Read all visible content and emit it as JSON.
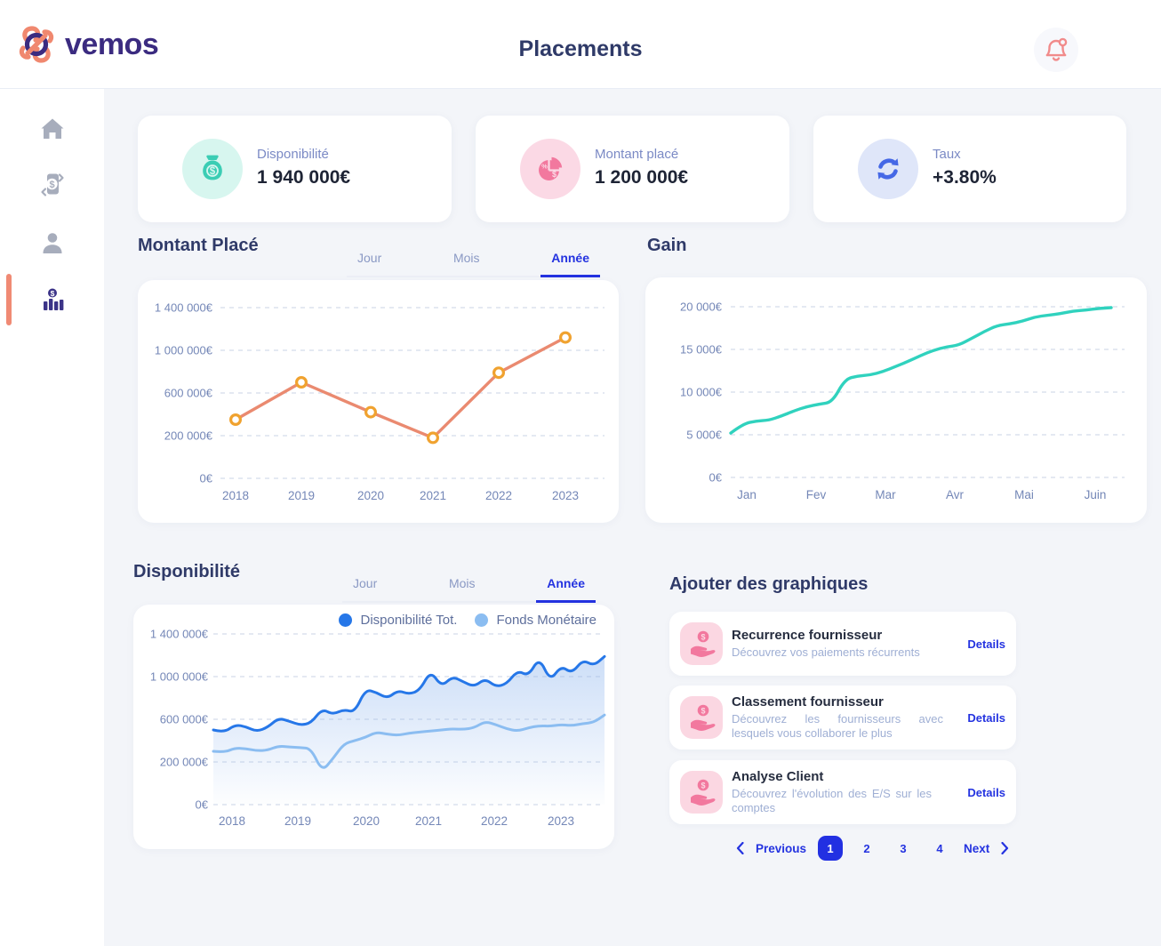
{
  "header": {
    "brand": "vemos",
    "title": "Placements"
  },
  "sidebar": {
    "items": [
      {
        "icon": "home-icon",
        "active": false
      },
      {
        "icon": "transactions-icon",
        "active": false
      },
      {
        "icon": "clients-icon",
        "active": false
      },
      {
        "icon": "placements-icon",
        "active": true
      }
    ]
  },
  "stats": [
    {
      "label": "Disponibilité",
      "value": "1 940 000€",
      "icon": "money-bag-icon",
      "icon_color": "#3BCDB4",
      "icon_bg": "#D7F6EF"
    },
    {
      "label": "Montant placé",
      "value": "1 200 000€",
      "icon": "pie-chart-icon",
      "icon_color": "#F2789E",
      "icon_bg": "#FBD9E5"
    },
    {
      "label": "Taux",
      "value": "+3.80%",
      "icon": "exchange-icon",
      "icon_color": "#4568E6",
      "icon_bg": "#DFE6F9"
    }
  ],
  "tabs": {
    "items": [
      "Jour",
      "Mois",
      "Année"
    ],
    "active": "Année"
  },
  "sections": {
    "montant_place": "Montant Placé",
    "gain": "Gain",
    "disponibilite": "Disponibilité",
    "ajouter": "Ajouter des graphiques"
  },
  "legend": [
    {
      "label": "Disponibilité Tot.",
      "color": "#2677E8"
    },
    {
      "label": "Fonds Monétaire",
      "color": "#8BBDF1"
    }
  ],
  "add_cards": [
    {
      "title": "Recurrence fournisseur",
      "description": "Découvrez vos paiements récurrents",
      "link": "Details",
      "icon": "hand-coin-icon"
    },
    {
      "title": "Classement fournisseur",
      "description": "Découvrez les fournisseurs avec lesquels vous collaborer le plus",
      "link": "Details",
      "icon": "hand-coin-icon"
    },
    {
      "title": "Analyse Client",
      "description": "Découvrez l'évolution des E/S sur les comptes",
      "link": "Details",
      "icon": "hand-coin-icon"
    }
  ],
  "pagination": {
    "previous": "Previous",
    "pages": [
      "1",
      "2",
      "3",
      "4"
    ],
    "active_page": "1",
    "next": "Next"
  },
  "chart_data": [
    {
      "id": "montant_place",
      "type": "line",
      "title": "Montant Placé",
      "categories": [
        "2018",
        "2019",
        "2020",
        "2021",
        "2022",
        "2023"
      ],
      "values": [
        350000,
        700000,
        420000,
        190000,
        790000,
        1120000
      ],
      "y_ticks": {
        "labels": [
          "0€",
          "200 000€",
          "600 000€",
          "1 000 000€",
          "1 400 000€"
        ],
        "values": [
          0,
          200000,
          600000,
          1000000,
          1400000
        ]
      },
      "ylim": [
        0,
        1400000
      ],
      "grid": true,
      "legend_position": "none",
      "line_color": "#EA8A70",
      "marker_color": "#F0A22F"
    },
    {
      "id": "gain",
      "type": "line",
      "title": "Gain",
      "x_labels": [
        "Jan",
        "Fev",
        "Mar",
        "Avr",
        "Mai",
        "Juin"
      ],
      "values": [
        5200,
        6300,
        6600,
        6700,
        7200,
        7800,
        8300,
        8600,
        8800,
        11500,
        11900,
        12000,
        12400,
        13000,
        13600,
        14300,
        14900,
        15300,
        15500,
        16300,
        17100,
        17800,
        18000,
        18300,
        18800,
        19000,
        19200,
        19500,
        19600,
        19800,
        19900
      ],
      "y_ticks": {
        "labels": [
          "0€",
          "5 000€",
          "10 000€",
          "15 000€",
          "20 000€"
        ],
        "values": [
          0,
          5000,
          10000,
          15000,
          20000
        ]
      },
      "ylim": [
        0,
        20000
      ],
      "grid": true,
      "legend_position": "none",
      "line_color": "#30D2BE"
    },
    {
      "id": "disponibilite",
      "type": "area",
      "title": "Disponibilité",
      "x_labels": [
        "2018",
        "2019",
        "2020",
        "2021",
        "2022",
        "2023"
      ],
      "series": [
        {
          "name": "Disponibilité Tot.",
          "color": "#2677E8",
          "values": [
            500000,
            475000,
            550000,
            530000,
            485000,
            525000,
            612000,
            582000,
            545000,
            565000,
            698000,
            645000,
            692000,
            665000,
            880000,
            852000,
            795000,
            872000,
            835000,
            872000,
            1055000,
            905000,
            1002000,
            952000,
            905000,
            982000,
            905000,
            932000,
            1058000,
            1005000,
            1180000,
            958000,
            1102000,
            1030000,
            1158000,
            1102000,
            1188000
          ]
        },
        {
          "name": "Fonds Monétaire",
          "color": "#8BBDF1",
          "values": [
            300000,
            290000,
            330000,
            325000,
            305000,
            310000,
            350000,
            340000,
            335000,
            325000,
            155000,
            230000,
            370000,
            400000,
            430000,
            480000,
            460000,
            450000,
            470000,
            480000,
            490000,
            500000,
            510000,
            505000,
            520000,
            580000,
            550000,
            510000,
            490000,
            520000,
            540000,
            535000,
            550000,
            540000,
            560000,
            570000,
            640000
          ]
        }
      ],
      "y_ticks": {
        "labels": [
          "0€",
          "200 000€",
          "600 000€",
          "1 000 000€",
          "1 400 000€"
        ],
        "values": [
          0,
          200000,
          600000,
          1000000,
          1400000
        ]
      },
      "ylim": [
        0,
        1400000
      ],
      "grid": true,
      "legend_position": "top-right"
    }
  ]
}
